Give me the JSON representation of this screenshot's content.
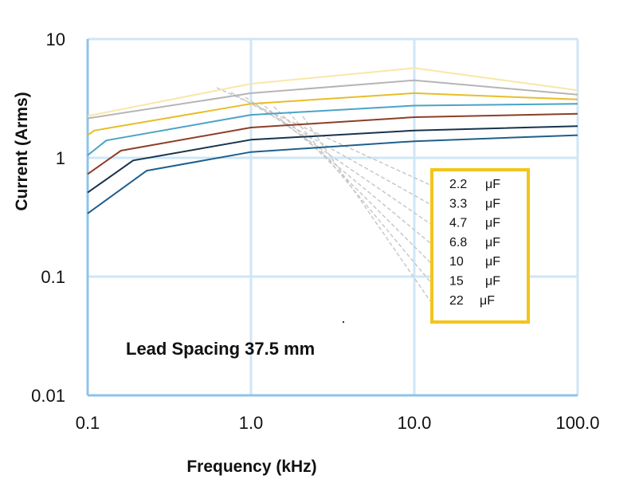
{
  "chart_data": {
    "type": "line",
    "xlabel": "Frequency (kHz)",
    "ylabel": "Current (Arms)",
    "x_scale": "log",
    "y_scale": "log",
    "xlim": [
      0.1,
      100.0
    ],
    "ylim": [
      0.01,
      10
    ],
    "x_ticks": [
      "0.1",
      "1.0",
      "10.0",
      "100.0"
    ],
    "y_ticks": [
      "0.01",
      "0.1",
      "1",
      "10"
    ],
    "grid": true,
    "legend_placement": "center-right",
    "annotation": "Lead Spacing 37.5 mm",
    "colors": {
      "gridline": "#cfe6f6",
      "axis": "#8fc3e8",
      "legend_border": "#f2c51a",
      "leader": "#c8c8c8"
    },
    "series": [
      {
        "name": "2.2 μF",
        "legend_value": "2.2",
        "legend_unit": "μF",
        "color": "#f8e7a8",
        "x": [
          0.1,
          1.0,
          10.0,
          100.0
        ],
        "y": [
          2.25,
          4.2,
          5.7,
          3.7
        ]
      },
      {
        "name": "3.3 μF",
        "legend_value": "3.3",
        "legend_unit": "μF",
        "color": "#b5b5b5",
        "x": [
          0.1,
          1.0,
          10.0,
          100.0
        ],
        "y": [
          2.15,
          3.5,
          4.5,
          3.4
        ]
      },
      {
        "name": "4.7 μF",
        "legend_value": "4.7",
        "legend_unit": "μF",
        "color": "#e8bd2a",
        "x": [
          0.1,
          0.11,
          1.0,
          10.0,
          100.0
        ],
        "y": [
          1.55,
          1.7,
          2.85,
          3.5,
          3.1
        ]
      },
      {
        "name": "6.8 μF",
        "legend_value": "6.8",
        "legend_unit": "μF",
        "color": "#4ba3c6",
        "x": [
          0.1,
          0.13,
          1.0,
          10.0,
          100.0
        ],
        "y": [
          1.05,
          1.4,
          2.3,
          2.75,
          2.85
        ]
      },
      {
        "name": "10 μF",
        "legend_value": "10",
        "legend_unit": "μF",
        "color": "#8b3f27",
        "x": [
          0.1,
          0.16,
          1.0,
          10.0,
          100.0
        ],
        "y": [
          0.73,
          1.15,
          1.8,
          2.2,
          2.35
        ]
      },
      {
        "name": "15 μF",
        "legend_value": "15",
        "legend_unit": "μF",
        "color": "#17344d",
        "x": [
          0.1,
          0.19,
          1.0,
          10.0,
          100.0
        ],
        "y": [
          0.51,
          0.95,
          1.42,
          1.7,
          1.85
        ]
      },
      {
        "name": "22 μF",
        "legend_value": "22",
        "legend_unit": "μF",
        "color": "#1f5f8c",
        "x": [
          0.1,
          0.23,
          1.0,
          10.0,
          100.0
        ],
        "y": [
          0.34,
          0.78,
          1.12,
          1.38,
          1.55
        ]
      }
    ]
  }
}
